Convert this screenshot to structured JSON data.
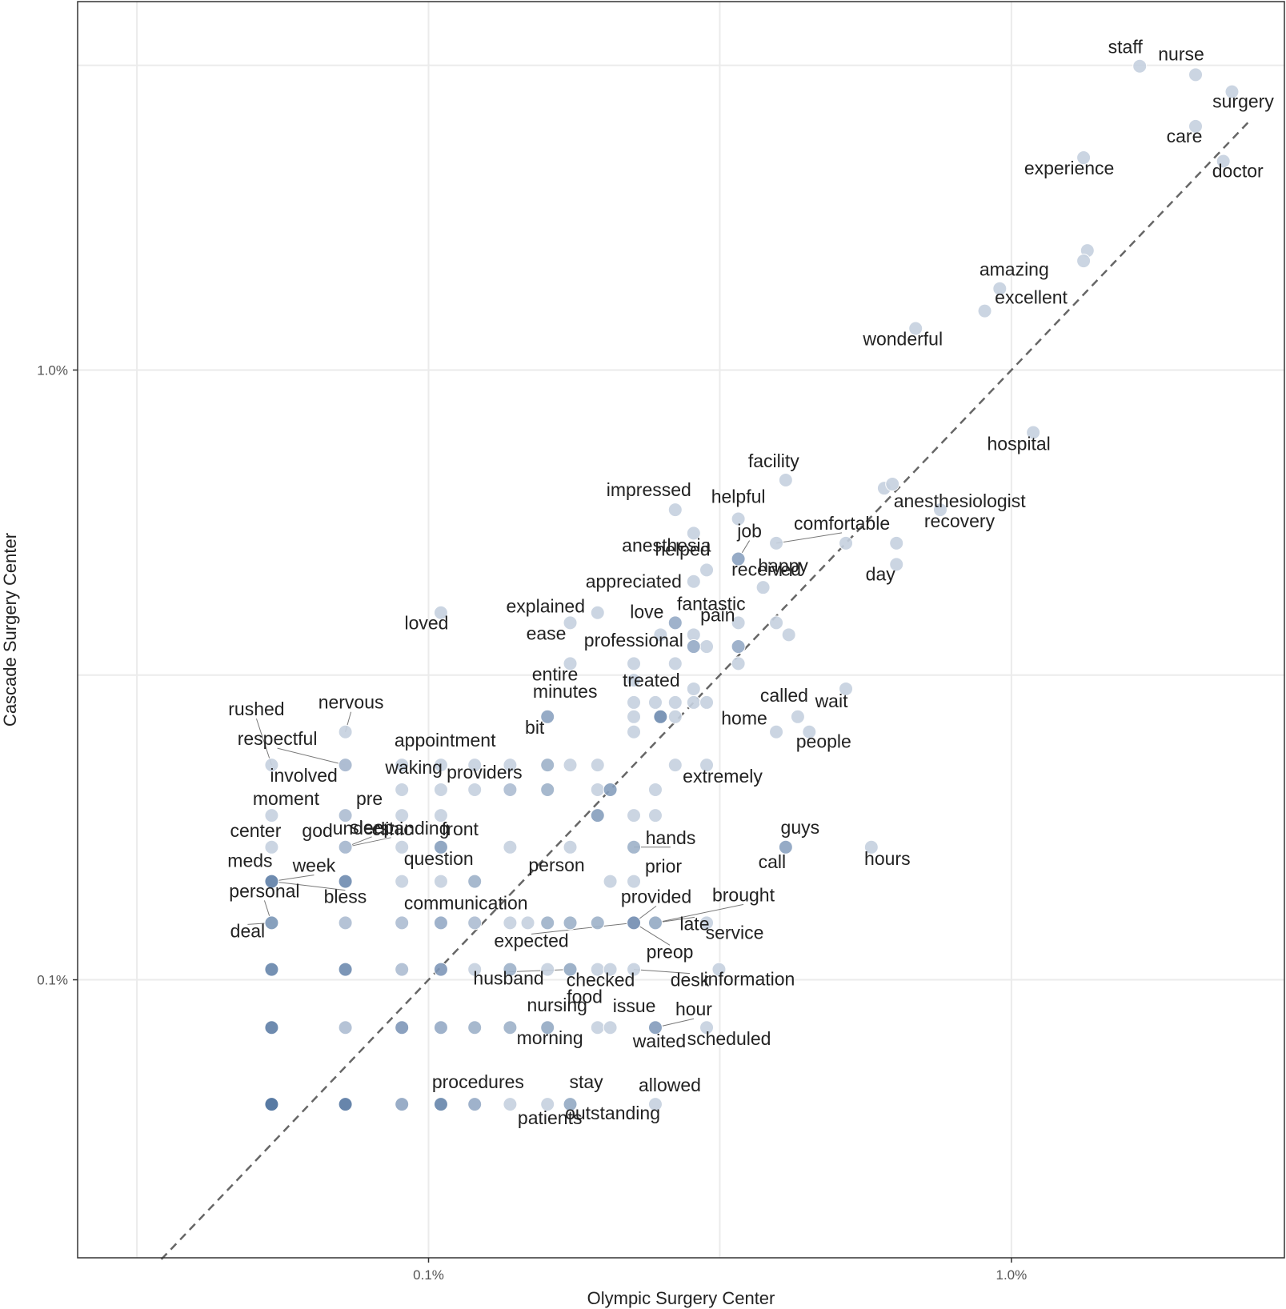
{
  "chart_data": {
    "type": "scatter",
    "title": "",
    "xlabel": "Olympic Surgery Center",
    "ylabel": "Cascade Surgery Center",
    "x_scale": "log",
    "y_scale": "log",
    "xlim": [
      0.025,
      2.94
    ],
    "ylim": [
      0.035,
      4.02
    ],
    "x_ticks": [
      0.1,
      1.0
    ],
    "x_tick_labels": [
      "0.1%",
      "1.0%"
    ],
    "y_ticks": [
      0.1,
      1.0
    ],
    "y_tick_labels": [
      "0.1%",
      "1.0%"
    ],
    "reference_line": "y = x (dashed)",
    "grid": true,
    "point_colors": {
      "low": "#dde3ec",
      "high": "#3e6595"
    },
    "labeled_points": [
      {
        "word": "staff",
        "x": 1.66,
        "y": 3.15,
        "shade": 0.15
      },
      {
        "word": "nurse",
        "x": 2.07,
        "y": 3.05,
        "shade": 0.15
      },
      {
        "word": "surgery",
        "x": 2.39,
        "y": 2.86,
        "shade": 0.15
      },
      {
        "word": "care",
        "x": 2.07,
        "y": 2.51,
        "shade": 0.15
      },
      {
        "word": "doctor",
        "x": 2.31,
        "y": 2.2,
        "shade": 0.15
      },
      {
        "word": "experience",
        "x": 1.33,
        "y": 2.23,
        "shade": 0.15
      },
      {
        "word": "amazing",
        "x": 0.955,
        "y": 1.36,
        "shade": 0.15
      },
      {
        "word": "excellent",
        "x": 0.9,
        "y": 1.25,
        "shade": 0.15
      },
      {
        "word": "wonderful",
        "x": 0.685,
        "y": 1.17,
        "shade": 0.15
      },
      {
        "word": "hospital",
        "x": 1.09,
        "y": 0.79,
        "shade": 0.15
      },
      {
        "word": "facility",
        "x": 0.41,
        "y": 0.66,
        "shade": 0.15
      },
      {
        "word": "impressed",
        "x": 0.265,
        "y": 0.59,
        "shade": 0.15
      },
      {
        "word": "helpful",
        "x": 0.34,
        "y": 0.57,
        "shade": 0.15
      },
      {
        "word": "anesthesiologist",
        "x": 0.625,
        "y": 0.65,
        "shade": 0.15
      },
      {
        "word": "recovery",
        "x": 0.755,
        "y": 0.59,
        "shade": 0.15
      },
      {
        "word": "job",
        "x": 0.34,
        "y": 0.49,
        "shade": 0.45
      },
      {
        "word": "comfortable",
        "x": 0.395,
        "y": 0.52,
        "shade": 0.15
      },
      {
        "word": "anesthesia",
        "x": 0.285,
        "y": 0.54,
        "shade": 0.15
      },
      {
        "word": "received",
        "x": 0.34,
        "y": 0.49,
        "shade": 0.45
      },
      {
        "word": "helped",
        "x": 0.3,
        "y": 0.47,
        "shade": 0.15
      },
      {
        "word": "day",
        "x": 0.635,
        "y": 0.48,
        "shade": 0.15
      },
      {
        "word": "appreciated",
        "x": 0.285,
        "y": 0.45,
        "shade": 0.15
      },
      {
        "word": "happy",
        "x": 0.375,
        "y": 0.44,
        "shade": 0.15
      },
      {
        "word": "loved",
        "x": 0.105,
        "y": 0.4,
        "shade": 0.15
      },
      {
        "word": "explained",
        "x": 0.195,
        "y": 0.4,
        "shade": 0.15
      },
      {
        "word": "fantastic",
        "x": 0.265,
        "y": 0.385,
        "shade": 0.45
      },
      {
        "word": "love",
        "x": 0.25,
        "y": 0.368,
        "shade": 0.15
      },
      {
        "word": "ease",
        "x": 0.175,
        "y": 0.385,
        "shade": 0.15
      },
      {
        "word": "pain",
        "x": 0.285,
        "y": 0.368,
        "shade": 0.15
      },
      {
        "word": "professional",
        "x": 0.285,
        "y": 0.352,
        "shade": 0.45
      },
      {
        "word": "entire",
        "x": 0.175,
        "y": 0.33,
        "shade": 0.15
      },
      {
        "word": "treated",
        "x": 0.285,
        "y": 0.3,
        "shade": 0.15
      },
      {
        "word": "wait",
        "x": 0.52,
        "y": 0.3,
        "shade": 0.15
      },
      {
        "word": "minutes",
        "x": 0.16,
        "y": 0.27,
        "shade": 0.45
      },
      {
        "word": "called",
        "x": 0.43,
        "y": 0.27,
        "shade": 0.15
      },
      {
        "word": "bit",
        "x": 0.16,
        "y": 0.27,
        "shade": 0.45
      },
      {
        "word": "home",
        "x": 0.395,
        "y": 0.255,
        "shade": 0.15
      },
      {
        "word": "people",
        "x": 0.45,
        "y": 0.255,
        "shade": 0.15
      },
      {
        "word": "extremely",
        "x": 0.3,
        "y": 0.225,
        "shade": 0.15
      },
      {
        "word": "nervous",
        "x": 0.072,
        "y": 0.255,
        "shade": 0.15
      },
      {
        "word": "rushed",
        "x": 0.0538,
        "y": 0.225,
        "shade": 0.15
      },
      {
        "word": "respectful",
        "x": 0.072,
        "y": 0.225,
        "shade": 0.3
      },
      {
        "word": "involved",
        "x": 0.072,
        "y": 0.225,
        "shade": 0.3
      },
      {
        "word": "appointment",
        "x": 0.09,
        "y": 0.225,
        "shade": 0.15
      },
      {
        "word": "waking",
        "x": 0.09,
        "y": 0.205,
        "shade": 0.15
      },
      {
        "word": "providers",
        "x": 0.138,
        "y": 0.205,
        "shade": 0.3
      },
      {
        "word": "moment",
        "x": 0.0538,
        "y": 0.186,
        "shade": 0.15
      },
      {
        "word": "pre",
        "x": 0.072,
        "y": 0.186,
        "shade": 0.3
      },
      {
        "word": "clinic",
        "x": 0.09,
        "y": 0.186,
        "shade": 0.15
      },
      {
        "word": "front",
        "x": 0.105,
        "y": 0.186,
        "shade": 0.15
      },
      {
        "word": "center",
        "x": 0.0538,
        "y": 0.165,
        "shade": 0.15
      },
      {
        "word": "god",
        "x": 0.072,
        "y": 0.165,
        "shade": 0.3
      },
      {
        "word": "sleep",
        "x": 0.072,
        "y": 0.165,
        "shade": 0.3
      },
      {
        "word": "understanding",
        "x": 0.072,
        "y": 0.165,
        "shade": 0.3
      },
      {
        "word": "question",
        "x": 0.09,
        "y": 0.165,
        "shade": 0.15
      },
      {
        "word": "hands",
        "x": 0.225,
        "y": 0.165,
        "shade": 0.4
      },
      {
        "word": "guys",
        "x": 0.41,
        "y": 0.165,
        "shade": 0.45
      },
      {
        "word": "call",
        "x": 0.41,
        "y": 0.165,
        "shade": 0.45
      },
      {
        "word": "hours",
        "x": 0.575,
        "y": 0.165,
        "shade": 0.15
      },
      {
        "word": "person",
        "x": 0.175,
        "y": 0.165,
        "shade": 0.15
      },
      {
        "word": "prior",
        "x": 0.225,
        "y": 0.145,
        "shade": 0.15
      },
      {
        "word": "meds",
        "x": 0.0538,
        "y": 0.145,
        "shade": 0.7
      },
      {
        "word": "week",
        "x": 0.0538,
        "y": 0.145,
        "shade": 0.7
      },
      {
        "word": "bless",
        "x": 0.0538,
        "y": 0.145,
        "shade": 0.7
      },
      {
        "word": "personal",
        "x": 0.0538,
        "y": 0.124,
        "shade": 0.55
      },
      {
        "word": "deal",
        "x": 0.0538,
        "y": 0.124,
        "shade": 0.55
      },
      {
        "word": "communication",
        "x": 0.16,
        "y": 0.124,
        "shade": 0.4
      },
      {
        "word": "provided",
        "x": 0.225,
        "y": 0.124,
        "shade": 0.6
      },
      {
        "word": "brought",
        "x": 0.245,
        "y": 0.124,
        "shade": 0.4
      },
      {
        "word": "late",
        "x": 0.245,
        "y": 0.124,
        "shade": 0.4
      },
      {
        "word": "service",
        "x": 0.3,
        "y": 0.124,
        "shade": 0.15
      },
      {
        "word": "expected",
        "x": 0.225,
        "y": 0.124,
        "shade": 0.6
      },
      {
        "word": "food",
        "x": 0.205,
        "y": 0.104,
        "shade": 0.15
      },
      {
        "word": "preop",
        "x": 0.225,
        "y": 0.124,
        "shade": 0.6
      },
      {
        "word": "husband",
        "x": 0.175,
        "y": 0.104,
        "shade": 0.4
      },
      {
        "word": "checked",
        "x": 0.175,
        "y": 0.104,
        "shade": 0.4
      },
      {
        "word": "desk",
        "x": 0.225,
        "y": 0.104,
        "shade": 0.15
      },
      {
        "word": "information",
        "x": 0.315,
        "y": 0.104,
        "shade": 0.15
      },
      {
        "word": "nursing",
        "x": 0.16,
        "y": 0.0835,
        "shade": 0.4
      },
      {
        "word": "issue",
        "x": 0.205,
        "y": 0.0835,
        "shade": 0.15
      },
      {
        "word": "hour",
        "x": 0.245,
        "y": 0.0835,
        "shade": 0.5
      },
      {
        "word": "morning",
        "x": 0.16,
        "y": 0.0835,
        "shade": 0.4
      },
      {
        "word": "waited",
        "x": 0.245,
        "y": 0.0835,
        "shade": 0.5
      },
      {
        "word": "scheduled",
        "x": 0.3,
        "y": 0.0835,
        "shade": 0.15
      },
      {
        "word": "procedures",
        "x": 0.138,
        "y": 0.0625,
        "shade": 0.15
      },
      {
        "word": "stay",
        "x": 0.175,
        "y": 0.0625,
        "shade": 0.4
      },
      {
        "word": "allowed",
        "x": 0.245,
        "y": 0.0625,
        "shade": 0.15
      },
      {
        "word": "patients",
        "x": 0.16,
        "y": 0.0625,
        "shade": 0.15
      },
      {
        "word": "outstanding",
        "x": 0.175,
        "y": 0.0625,
        "shade": 0.4
      }
    ],
    "unlabeled_points": [
      {
        "x": 1.35,
        "y": 1.57,
        "shade": 0.15
      },
      {
        "x": 1.33,
        "y": 1.51,
        "shade": 0.15
      },
      {
        "x": 0.605,
        "y": 0.64,
        "shade": 0.15
      },
      {
        "x": 0.52,
        "y": 0.52,
        "shade": 0.15
      },
      {
        "x": 0.635,
        "y": 0.52,
        "shade": 0.15
      },
      {
        "x": 0.34,
        "y": 0.385,
        "shade": 0.15
      },
      {
        "x": 0.395,
        "y": 0.385,
        "shade": 0.15
      },
      {
        "x": 0.415,
        "y": 0.368,
        "shade": 0.15
      },
      {
        "x": 0.3,
        "y": 0.352,
        "shade": 0.15
      },
      {
        "x": 0.34,
        "y": 0.352,
        "shade": 0.45
      },
      {
        "x": 0.225,
        "y": 0.33,
        "shade": 0.15
      },
      {
        "x": 0.265,
        "y": 0.33,
        "shade": 0.15
      },
      {
        "x": 0.34,
        "y": 0.33,
        "shade": 0.15
      },
      {
        "x": 0.225,
        "y": 0.31,
        "shade": 0.15
      },
      {
        "x": 0.225,
        "y": 0.285,
        "shade": 0.15
      },
      {
        "x": 0.245,
        "y": 0.285,
        "shade": 0.15
      },
      {
        "x": 0.265,
        "y": 0.285,
        "shade": 0.15
      },
      {
        "x": 0.285,
        "y": 0.285,
        "shade": 0.15
      },
      {
        "x": 0.3,
        "y": 0.285,
        "shade": 0.15
      },
      {
        "x": 0.225,
        "y": 0.27,
        "shade": 0.15
      },
      {
        "x": 0.25,
        "y": 0.27,
        "shade": 0.7
      },
      {
        "x": 0.265,
        "y": 0.27,
        "shade": 0.15
      },
      {
        "x": 0.225,
        "y": 0.255,
        "shade": 0.15
      },
      {
        "x": 0.105,
        "y": 0.225,
        "shade": 0.15
      },
      {
        "x": 0.12,
        "y": 0.225,
        "shade": 0.15
      },
      {
        "x": 0.138,
        "y": 0.225,
        "shade": 0.15
      },
      {
        "x": 0.16,
        "y": 0.225,
        "shade": 0.4
      },
      {
        "x": 0.175,
        "y": 0.225,
        "shade": 0.15
      },
      {
        "x": 0.195,
        "y": 0.225,
        "shade": 0.15
      },
      {
        "x": 0.265,
        "y": 0.225,
        "shade": 0.15
      },
      {
        "x": 0.105,
        "y": 0.205,
        "shade": 0.15
      },
      {
        "x": 0.12,
        "y": 0.205,
        "shade": 0.15
      },
      {
        "x": 0.16,
        "y": 0.205,
        "shade": 0.4
      },
      {
        "x": 0.195,
        "y": 0.205,
        "shade": 0.15
      },
      {
        "x": 0.205,
        "y": 0.205,
        "shade": 0.55
      },
      {
        "x": 0.245,
        "y": 0.205,
        "shade": 0.15
      },
      {
        "x": 0.195,
        "y": 0.186,
        "shade": 0.55
      },
      {
        "x": 0.225,
        "y": 0.186,
        "shade": 0.15
      },
      {
        "x": 0.245,
        "y": 0.186,
        "shade": 0.15
      },
      {
        "x": 0.105,
        "y": 0.165,
        "shade": 0.55
      },
      {
        "x": 0.138,
        "y": 0.165,
        "shade": 0.15
      },
      {
        "x": 0.072,
        "y": 0.145,
        "shade": 0.7
      },
      {
        "x": 0.09,
        "y": 0.145,
        "shade": 0.15
      },
      {
        "x": 0.105,
        "y": 0.145,
        "shade": 0.15
      },
      {
        "x": 0.12,
        "y": 0.145,
        "shade": 0.4
      },
      {
        "x": 0.205,
        "y": 0.145,
        "shade": 0.15
      },
      {
        "x": 0.072,
        "y": 0.124,
        "shade": 0.3
      },
      {
        "x": 0.09,
        "y": 0.124,
        "shade": 0.3
      },
      {
        "x": 0.105,
        "y": 0.124,
        "shade": 0.45
      },
      {
        "x": 0.12,
        "y": 0.124,
        "shade": 0.3
      },
      {
        "x": 0.138,
        "y": 0.124,
        "shade": 0.15
      },
      {
        "x": 0.148,
        "y": 0.124,
        "shade": 0.15
      },
      {
        "x": 0.175,
        "y": 0.124,
        "shade": 0.4
      },
      {
        "x": 0.195,
        "y": 0.124,
        "shade": 0.4
      },
      {
        "x": 0.0538,
        "y": 0.104,
        "shade": 0.75
      },
      {
        "x": 0.072,
        "y": 0.104,
        "shade": 0.7
      },
      {
        "x": 0.09,
        "y": 0.104,
        "shade": 0.3
      },
      {
        "x": 0.105,
        "y": 0.104,
        "shade": 0.6
      },
      {
        "x": 0.12,
        "y": 0.104,
        "shade": 0.15
      },
      {
        "x": 0.138,
        "y": 0.104,
        "shade": 0.4
      },
      {
        "x": 0.16,
        "y": 0.104,
        "shade": 0.15
      },
      {
        "x": 0.195,
        "y": 0.104,
        "shade": 0.15
      },
      {
        "x": 0.0538,
        "y": 0.0835,
        "shade": 0.8
      },
      {
        "x": 0.072,
        "y": 0.0835,
        "shade": 0.3
      },
      {
        "x": 0.09,
        "y": 0.0835,
        "shade": 0.6
      },
      {
        "x": 0.105,
        "y": 0.0835,
        "shade": 0.45
      },
      {
        "x": 0.12,
        "y": 0.0835,
        "shade": 0.4
      },
      {
        "x": 0.138,
        "y": 0.0835,
        "shade": 0.4
      },
      {
        "x": 0.195,
        "y": 0.0835,
        "shade": 0.15
      },
      {
        "x": 0.0538,
        "y": 0.0625,
        "shade": 0.95
      },
      {
        "x": 0.072,
        "y": 0.0625,
        "shade": 0.85
      },
      {
        "x": 0.09,
        "y": 0.0625,
        "shade": 0.5
      },
      {
        "x": 0.105,
        "y": 0.0625,
        "shade": 0.75
      },
      {
        "x": 0.12,
        "y": 0.0625,
        "shade": 0.45
      }
    ]
  }
}
